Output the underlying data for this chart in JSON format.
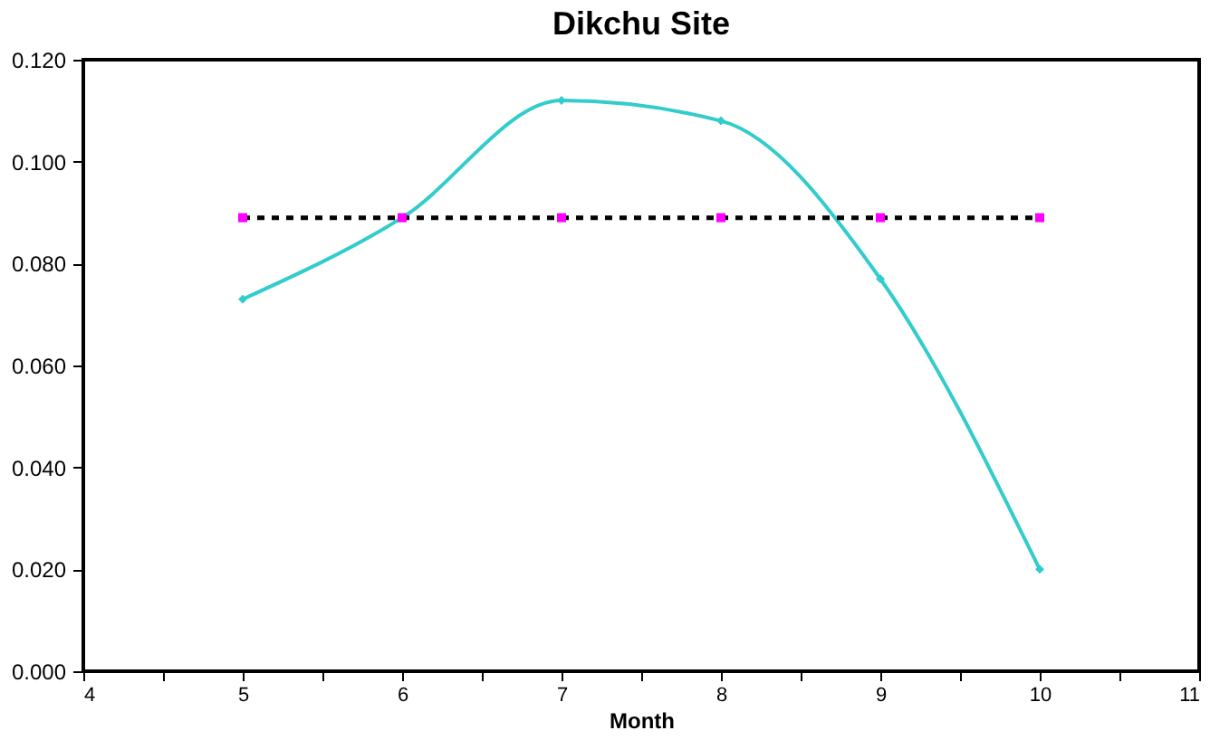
{
  "chart_data": {
    "type": "line",
    "title": "Dikchu Site",
    "xlabel": "Month",
    "x": [
      5,
      6,
      7,
      8,
      9,
      10
    ],
    "series": [
      {
        "color": "#33cccc",
        "values": [
          0.073,
          0.089,
          0.112,
          0.108,
          0.077,
          0.02
        ],
        "marker": "diamond",
        "line_style": "solid"
      },
      {
        "color": "#ff00ff",
        "values": [
          0.089,
          0.089,
          0.089,
          0.089,
          0.089,
          0.089
        ],
        "marker": "square",
        "line_style": "dotted"
      }
    ],
    "xlim": [
      4,
      11
    ],
    "xticks": [
      4,
      {
        "value": 4.5,
        "label": null
      },
      5,
      {
        "value": 5.5,
        "label": null
      },
      6,
      {
        "value": 6.5,
        "label": null
      },
      7,
      {
        "value": 7.5,
        "label": null
      },
      8,
      {
        "value": 8.5,
        "label": null
      },
      9,
      {
        "value": 9.5,
        "label": null
      },
      10,
      {
        "value": 10.5,
        "label": null
      },
      11
    ],
    "ylim": [
      0,
      0.12
    ],
    "yticks": [
      {
        "value": 0,
        "label": "0.000"
      },
      {
        "value": 0.02,
        "label": "0.020"
      },
      {
        "value": 0.04,
        "label": "0.040"
      },
      {
        "value": 0.06,
        "label": "0.060"
      },
      {
        "value": 0.08,
        "label": "0.080"
      },
      {
        "value": 0.1,
        "label": "0.100"
      },
      {
        "value": 0.12,
        "label": "0.120"
      }
    ],
    "grid": false
  }
}
